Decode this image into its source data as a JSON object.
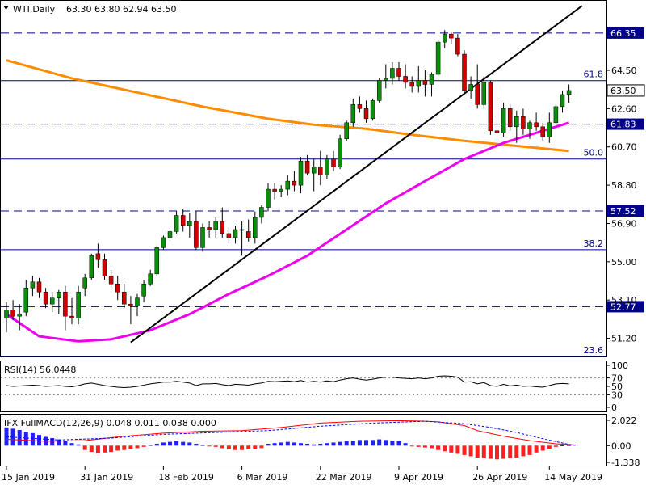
{
  "header": {
    "symbol": "WTI,Daily",
    "ohlc": "63.30 63.80 62.94 63.50"
  },
  "chart_data": [
    {
      "type": "candlestick",
      "title": "WTI,Daily",
      "ylim": [
        50.3,
        67.95
      ],
      "y_ticks": [
        "64.50",
        "62.60",
        "60.70",
        "58.80",
        "56.90",
        "55.00",
        "53.10",
        "51.20"
      ],
      "x_ticks": [
        "15 Jan 2019",
        "31 Jan 2019",
        "18 Feb 2019",
        "6 Mar 2019",
        "22 Mar 2019",
        "9 Apr 2019",
        "26 Apr 2019",
        "14 May 2019"
      ],
      "x_tick_index": [
        0,
        12,
        24,
        36,
        48,
        60,
        72,
        83
      ],
      "last_price": "63.50",
      "colors": {
        "up": "#0a8f0a",
        "down": "#d00000",
        "ma_orange": "#ff8c00",
        "ma_magenta": "#ee00ee",
        "trendline": "#000000",
        "levels": "#00008b"
      },
      "candles": [
        [
          52.2,
          53.0,
          51.5,
          52.6
        ],
        [
          52.6,
          53.1,
          52.1,
          52.3
        ],
        [
          52.3,
          52.9,
          51.6,
          52.4
        ],
        [
          52.5,
          54.1,
          52.3,
          53.7
        ],
        [
          53.7,
          54.3,
          53.3,
          54.0
        ],
        [
          54.0,
          54.2,
          53.2,
          53.5
        ],
        [
          53.5,
          53.7,
          52.7,
          52.9
        ],
        [
          52.9,
          53.5,
          52.5,
          53.2
        ],
        [
          53.2,
          53.6,
          52.4,
          53.5
        ],
        [
          53.5,
          53.8,
          51.6,
          52.3
        ],
        [
          52.3,
          53.2,
          51.9,
          52.2
        ],
        [
          52.2,
          53.8,
          51.9,
          53.5
        ],
        [
          53.7,
          54.4,
          53.3,
          54.2
        ],
        [
          54.2,
          55.4,
          54.1,
          55.3
        ],
        [
          55.4,
          55.9,
          54.7,
          55.1
        ],
        [
          55.1,
          55.4,
          54.1,
          54.3
        ],
        [
          54.3,
          54.6,
          53.6,
          53.9
        ],
        [
          53.9,
          54.3,
          53.1,
          53.5
        ],
        [
          53.5,
          53.9,
          52.7,
          52.9
        ],
        [
          52.9,
          53.3,
          51.9,
          52.8
        ],
        [
          52.8,
          53.4,
          52.3,
          53.2
        ],
        [
          53.3,
          54.1,
          53.0,
          53.9
        ],
        [
          53.9,
          54.6,
          53.8,
          54.4
        ],
        [
          54.4,
          55.8,
          54.3,
          55.7
        ],
        [
          55.7,
          56.3,
          55.6,
          56.2
        ],
        [
          56.2,
          56.6,
          55.9,
          56.5
        ],
        [
          56.5,
          57.5,
          56.4,
          57.3
        ],
        [
          57.3,
          57.6,
          56.5,
          56.8
        ],
        [
          56.8,
          57.4,
          56.2,
          57.0
        ],
        [
          57.0,
          57.5,
          55.6,
          55.7
        ],
        [
          55.7,
          56.9,
          55.5,
          56.7
        ],
        [
          56.7,
          57.0,
          56.2,
          56.6
        ],
        [
          56.6,
          57.2,
          56.2,
          57.0
        ],
        [
          57.0,
          57.7,
          56.2,
          56.4
        ],
        [
          56.4,
          56.7,
          55.9,
          56.2
        ],
        [
          56.2,
          56.8,
          55.9,
          56.6
        ],
        [
          56.6,
          57.0,
          55.3,
          56.6
        ],
        [
          56.5,
          57.1,
          56.0,
          56.2
        ],
        [
          56.2,
          57.5,
          55.9,
          57.2
        ],
        [
          57.2,
          57.8,
          56.9,
          57.7
        ],
        [
          57.7,
          58.9,
          57.5,
          58.6
        ],
        [
          58.6,
          58.9,
          58.1,
          58.5
        ],
        [
          58.5,
          58.8,
          58.2,
          58.6
        ],
        [
          58.6,
          59.3,
          58.3,
          59.0
        ],
        [
          59.0,
          59.5,
          58.5,
          58.8
        ],
        [
          58.8,
          60.2,
          58.4,
          60.0
        ],
        [
          60.0,
          60.3,
          59.3,
          59.4
        ],
        [
          59.4,
          60.1,
          58.5,
          59.7
        ],
        [
          59.7,
          60.5,
          58.8,
          59.3
        ],
        [
          59.3,
          60.3,
          59.1,
          60.1
        ],
        [
          60.1,
          60.5,
          59.5,
          59.7
        ],
        [
          59.7,
          61.3,
          59.6,
          61.1
        ],
        [
          61.1,
          62.0,
          61.0,
          61.9
        ],
        [
          61.9,
          63.1,
          61.7,
          62.8
        ],
        [
          62.8,
          63.2,
          62.4,
          62.6
        ],
        [
          62.6,
          63.0,
          61.9,
          62.1
        ],
        [
          62.1,
          63.1,
          62.0,
          63.0
        ],
        [
          63.0,
          64.1,
          62.9,
          64.0
        ],
        [
          64.0,
          64.8,
          63.6,
          64.1
        ],
        [
          64.1,
          64.9,
          63.8,
          64.6
        ],
        [
          64.6,
          64.9,
          64.0,
          64.2
        ],
        [
          64.2,
          64.8,
          63.6,
          63.9
        ],
        [
          63.9,
          64.2,
          63.4,
          63.7
        ],
        [
          63.7,
          64.7,
          63.4,
          64.0
        ],
        [
          64.0,
          64.5,
          63.2,
          63.8
        ],
        [
          63.8,
          64.4,
          63.2,
          64.3
        ],
        [
          64.3,
          66.0,
          64.2,
          65.9
        ],
        [
          65.9,
          66.5,
          65.6,
          66.3
        ],
        [
          66.3,
          66.4,
          65.8,
          66.1
        ],
        [
          66.1,
          66.3,
          65.2,
          65.3
        ],
        [
          65.3,
          65.5,
          63.4,
          63.5
        ],
        [
          63.5,
          64.2,
          63.1,
          63.8
        ],
        [
          63.8,
          64.8,
          62.6,
          62.8
        ],
        [
          62.8,
          64.2,
          62.6,
          63.9
        ],
        [
          63.9,
          64.0,
          61.3,
          61.5
        ],
        [
          61.5,
          62.2,
          60.8,
          61.4
        ],
        [
          61.4,
          62.9,
          61.2,
          62.6
        ],
        [
          62.6,
          62.8,
          61.5,
          61.7
        ],
        [
          61.7,
          62.5,
          60.9,
          62.2
        ],
        [
          62.2,
          62.6,
          61.3,
          61.6
        ],
        [
          61.6,
          62.0,
          61.1,
          61.9
        ],
        [
          61.9,
          62.4,
          61.5,
          61.7
        ],
        [
          61.7,
          61.9,
          61.0,
          61.2
        ],
        [
          61.2,
          62.4,
          60.9,
          61.9
        ],
        [
          61.9,
          62.8,
          61.8,
          62.7
        ],
        [
          62.7,
          63.5,
          62.4,
          63.3
        ],
        [
          63.3,
          63.8,
          62.9,
          63.5
        ]
      ],
      "ma_orange": [
        [
          0,
          65.0
        ],
        [
          10,
          64.1
        ],
        [
          20,
          63.4
        ],
        [
          30,
          62.7
        ],
        [
          40,
          62.1
        ],
        [
          47,
          61.8
        ],
        [
          55,
          61.6
        ],
        [
          62,
          61.3
        ],
        [
          70,
          61.0
        ],
        [
          78,
          60.75
        ],
        [
          86,
          60.5
        ]
      ],
      "ma_magenta": [
        [
          0,
          52.4
        ],
        [
          5,
          51.3
        ],
        [
          11,
          51.05
        ],
        [
          16,
          51.15
        ],
        [
          22,
          51.6
        ],
        [
          28,
          52.4
        ],
        [
          34,
          53.4
        ],
        [
          40,
          54.3
        ],
        [
          46,
          55.3
        ],
        [
          52,
          56.6
        ],
        [
          58,
          57.9
        ],
        [
          64,
          59.0
        ],
        [
          70,
          60.1
        ],
        [
          76,
          60.9
        ],
        [
          80,
          61.3
        ],
        [
          86,
          61.9
        ]
      ],
      "trendline": {
        "from": [
          19,
          51.0
        ],
        "to": [
          88,
          67.7
        ]
      },
      "levels": [
        {
          "value": 66.35,
          "label": "66.35",
          "style": "dashed",
          "boxed": true
        },
        {
          "value": 63.99,
          "label": "61.8",
          "style": "solid",
          "boxed": false
        },
        {
          "value": 61.83,
          "label": "61.83",
          "style": "dashed",
          "boxed": true
        },
        {
          "value": 60.1,
          "label": "50.0",
          "style": "solid",
          "boxed": false
        },
        {
          "value": 57.52,
          "label": "57.52",
          "style": "dashed",
          "boxed": true
        },
        {
          "value": 55.6,
          "label": "38.2",
          "style": "solid",
          "boxed": false
        },
        {
          "value": 52.77,
          "label": "52.77",
          "style": "dashed",
          "boxed": true
        },
        {
          "value": 50.3,
          "label": "23.6",
          "style": "solid",
          "boxed": false
        }
      ]
    },
    {
      "type": "line",
      "title": "RSI(14) 56.0448",
      "ylim": [
        0,
        100
      ],
      "y_ticks": [
        "100",
        "70",
        "50",
        "30",
        "0"
      ],
      "reference_lines": [
        70,
        30
      ],
      "series": [
        {
          "values": [
            52,
            50,
            51,
            52,
            53,
            52,
            50,
            51,
            52,
            50,
            49,
            52,
            56,
            58,
            55,
            52,
            50,
            48,
            47,
            48,
            50,
            53,
            56,
            58,
            60,
            60,
            62,
            60,
            58,
            52,
            56,
            56,
            57,
            54,
            52,
            55,
            54,
            53,
            56,
            58,
            62,
            61,
            62,
            63,
            61,
            64,
            60,
            62,
            60,
            63,
            61,
            65,
            68,
            70,
            67,
            65,
            67,
            70,
            72,
            72,
            70,
            69,
            68,
            70,
            68,
            70,
            74,
            75,
            74,
            72,
            60,
            61,
            56,
            59,
            52,
            50,
            55,
            51,
            53,
            50,
            51,
            49,
            48,
            52,
            56,
            57,
            56
          ]
        }
      ]
    },
    {
      "type": "bar",
      "title": "IFX FullMACD(12,26,9) 0.048 0.011 0.038 0.000",
      "ylim": [
        -1.338,
        2.022
      ],
      "y_ticks": [
        "2.022",
        "0.00",
        "-1.338"
      ],
      "histogram": [
        1.45,
        1.35,
        1.25,
        1.1,
        1.0,
        0.85,
        0.7,
        0.6,
        0.5,
        0.35,
        0.2,
        0.1,
        -0.35,
        -0.5,
        -0.6,
        -0.55,
        -0.5,
        -0.4,
        -0.35,
        -0.3,
        -0.2,
        -0.1,
        0.05,
        0.15,
        0.25,
        0.3,
        0.35,
        0.3,
        0.25,
        0.15,
        0.05,
        -0.05,
        -0.1,
        -0.2,
        -0.3,
        -0.35,
        -0.35,
        -0.3,
        -0.25,
        -0.2,
        0.15,
        0.2,
        0.25,
        0.3,
        0.25,
        0.2,
        0.15,
        0.1,
        0.15,
        0.2,
        0.25,
        0.3,
        0.35,
        0.4,
        0.45,
        0.45,
        0.45,
        0.5,
        0.45,
        0.4,
        0.35,
        0.2,
        -0.05,
        -0.1,
        -0.15,
        -0.2,
        -0.35,
        -0.45,
        -0.55,
        -0.65,
        -0.75,
        -0.85,
        -0.95,
        -1.0,
        -1.05,
        -1.1,
        -1.05,
        -1.0,
        -0.95,
        -0.85,
        -0.75,
        -0.55,
        -0.4,
        -0.25,
        -0.1,
        0.02,
        0.04
      ],
      "macd_line": [
        [
          0,
          0.5
        ],
        [
          6,
          0.35
        ],
        [
          12,
          0.4
        ],
        [
          18,
          0.75
        ],
        [
          24,
          1.0
        ],
        [
          30,
          1.15
        ],
        [
          36,
          1.2
        ],
        [
          42,
          1.45
        ],
        [
          48,
          1.8
        ],
        [
          54,
          1.95
        ],
        [
          60,
          2.0
        ],
        [
          64,
          1.95
        ],
        [
          66,
          1.9
        ],
        [
          70,
          1.6
        ],
        [
          72,
          1.2
        ],
        [
          76,
          0.75
        ],
        [
          80,
          0.4
        ],
        [
          84,
          0.15
        ],
        [
          87,
          0.05
        ]
      ],
      "signal_line": [
        [
          0,
          0.7
        ],
        [
          8,
          0.45
        ],
        [
          16,
          0.6
        ],
        [
          24,
          0.9
        ],
        [
          32,
          1.05
        ],
        [
          40,
          1.2
        ],
        [
          48,
          1.55
        ],
        [
          56,
          1.8
        ],
        [
          64,
          1.95
        ],
        [
          70,
          1.75
        ],
        [
          74,
          1.45
        ],
        [
          78,
          1.05
        ],
        [
          82,
          0.55
        ],
        [
          86,
          0.1
        ],
        [
          87,
          0.02
        ]
      ]
    }
  ]
}
